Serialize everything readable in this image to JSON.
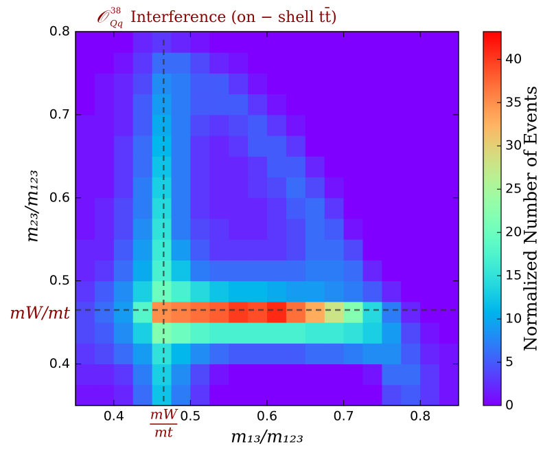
{
  "chart_data": {
    "type": "heatmap",
    "title_symbol": "𝒪",
    "title_sup": "38",
    "title_sub": "Qq",
    "title_text": "Interference (on − shell tt̄)",
    "x_label": "m₁₃/m₁₂₃",
    "y_label": "m₂₃/m₁₂₃",
    "colorbar_label": "Normalized Number of Events",
    "colormap": "rainbow",
    "xlim": [
      0.35,
      0.85
    ],
    "ylim": [
      0.35,
      0.8
    ],
    "xticks": [
      0.4,
      0.5,
      0.6,
      0.7,
      0.8
    ],
    "yticks": [
      0.4,
      0.5,
      0.6,
      0.7,
      0.8
    ],
    "zlim": [
      0,
      43.2
    ],
    "zticks": [
      0,
      5,
      10,
      15,
      20,
      25,
      30,
      35,
      40
    ],
    "x_edges": [
      0.35,
      0.375,
      0.4,
      0.425,
      0.45,
      0.475,
      0.5,
      0.525,
      0.55,
      0.575,
      0.6,
      0.625,
      0.65,
      0.675,
      0.7,
      0.725,
      0.75,
      0.775,
      0.8,
      0.825,
      0.85
    ],
    "y_edges": [
      0.35,
      0.375,
      0.4,
      0.425,
      0.45,
      0.475,
      0.5,
      0.525,
      0.55,
      0.575,
      0.6,
      0.625,
      0.65,
      0.675,
      0.7,
      0.725,
      0.75,
      0.775,
      0.8
    ],
    "z": [
      [
        1,
        1,
        2,
        6,
        12,
        7,
        3,
        0,
        0,
        0,
        0,
        0,
        0,
        0,
        0,
        0,
        4,
        5,
        3,
        1
      ],
      [
        2,
        2,
        3,
        7,
        13,
        8,
        4,
        1,
        0,
        0,
        0,
        0,
        0,
        0,
        0,
        1,
        6,
        6,
        3,
        1
      ],
      [
        3,
        4,
        6,
        9,
        15,
        11,
        8,
        6,
        5,
        5,
        5,
        5,
        6,
        6,
        7,
        8,
        8,
        5,
        2,
        1
      ],
      [
        4,
        5,
        8,
        13,
        22,
        20,
        18,
        17,
        17,
        17,
        17,
        17,
        16,
        16,
        15,
        13,
        9,
        4,
        1,
        0
      ],
      [
        4,
        6,
        9,
        18,
        35,
        36,
        37,
        38,
        40,
        39,
        41,
        37,
        33,
        28,
        22,
        14,
        7,
        2,
        0,
        0
      ],
      [
        3,
        5,
        8,
        13,
        20,
        17,
        14,
        12,
        11,
        11,
        10,
        9,
        9,
        8,
        7,
        5,
        2,
        0,
        0,
        0
      ],
      [
        2,
        3,
        6,
        10,
        17,
        12,
        7,
        6,
        6,
        6,
        6,
        6,
        7,
        7,
        6,
        2,
        0,
        0,
        0,
        0
      ],
      [
        2,
        2,
        5,
        9,
        16,
        9,
        5,
        3,
        3,
        3,
        3,
        4,
        6,
        6,
        4,
        0,
        0,
        0,
        0,
        0
      ],
      [
        1,
        2,
        4,
        8,
        15,
        7,
        4,
        3,
        2,
        2,
        3,
        4,
        6,
        5,
        1,
        0,
        0,
        0,
        0,
        0
      ],
      [
        1,
        2,
        4,
        7,
        14,
        7,
        3,
        2,
        2,
        2,
        3,
        5,
        6,
        3,
        0,
        0,
        0,
        0,
        0,
        0
      ],
      [
        1,
        1,
        3,
        7,
        13,
        7,
        3,
        2,
        2,
        3,
        4,
        6,
        4,
        1,
        0,
        0,
        0,
        0,
        0,
        0
      ],
      [
        1,
        1,
        3,
        6,
        12,
        7,
        3,
        2,
        2,
        3,
        5,
        5,
        2,
        0,
        0,
        0,
        0,
        0,
        0,
        0
      ],
      [
        1,
        1,
        3,
        6,
        11,
        7,
        3,
        2,
        3,
        5,
        5,
        3,
        0,
        0,
        0,
        0,
        0,
        0,
        0,
        0
      ],
      [
        1,
        1,
        2,
        5,
        10,
        7,
        4,
        3,
        4,
        5,
        3,
        1,
        0,
        0,
        0,
        0,
        0,
        0,
        0,
        0
      ],
      [
        0,
        1,
        2,
        5,
        9,
        7,
        5,
        5,
        5,
        3,
        1,
        0,
        0,
        0,
        0,
        0,
        0,
        0,
        0,
        0
      ],
      [
        0,
        1,
        2,
        4,
        8,
        7,
        5,
        5,
        3,
        1,
        0,
        0,
        0,
        0,
        0,
        0,
        0,
        0,
        0,
        0
      ],
      [
        0,
        0,
        1,
        3,
        6,
        6,
        4,
        2,
        1,
        0,
        0,
        0,
        0,
        0,
        0,
        0,
        0,
        0,
        0,
        0
      ],
      [
        0,
        0,
        0,
        2,
        3,
        2,
        1,
        0,
        0,
        0,
        0,
        0,
        0,
        0,
        0,
        0,
        0,
        0,
        0,
        0
      ]
    ],
    "vline": 0.465,
    "hline": 0.465,
    "x_ref_num": "mW",
    "x_ref_den": "mt",
    "y_ref_label": "mW/mt"
  }
}
